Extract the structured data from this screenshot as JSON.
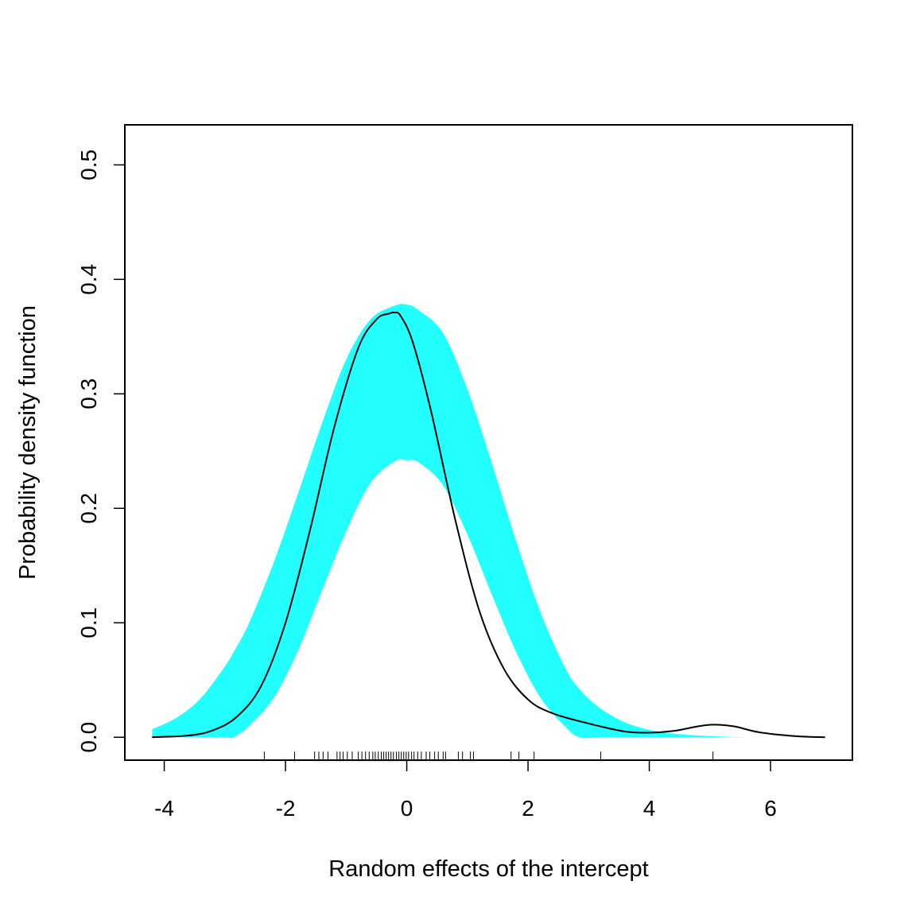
{
  "chart_data": {
    "type": "area",
    "title": "",
    "xlabel": "Random effects of the intercept",
    "ylabel": "Probability density function",
    "xlim": [
      -4.65,
      7.35
    ],
    "ylim": [
      -0.02,
      0.535
    ],
    "x_ticks": [
      -4,
      -2,
      0,
      2,
      4,
      6
    ],
    "x_tick_labels": [
      "-4",
      "-2",
      "0",
      "2",
      "4",
      "6"
    ],
    "y_ticks": [
      0.0,
      0.1,
      0.2,
      0.3,
      0.4,
      0.5
    ],
    "y_tick_labels": [
      "0.0",
      "0.1",
      "0.2",
      "0.3",
      "0.4",
      "0.5"
    ],
    "grid": false,
    "band": {
      "color": "#22ffff",
      "x": [
        -4.2,
        -3.8,
        -3.4,
        -3.0,
        -2.85,
        -2.6,
        -2.2,
        -1.8,
        -1.4,
        -1.0,
        -0.6,
        -0.2,
        0.0,
        0.2,
        0.6,
        1.0,
        1.4,
        1.8,
        2.2,
        2.6,
        2.85,
        3.2,
        3.6,
        4.0,
        4.4,
        4.8,
        5.2,
        5.6
      ],
      "upper": [
        0.007,
        0.017,
        0.034,
        0.062,
        0.075,
        0.1,
        0.152,
        0.212,
        0.274,
        0.33,
        0.365,
        0.377,
        0.378,
        0.373,
        0.353,
        0.304,
        0.24,
        0.172,
        0.11,
        0.062,
        0.042,
        0.025,
        0.013,
        0.0065,
        0.0032,
        0.0015,
        0.0006,
        0.0
      ],
      "lower": [
        0.0,
        0.0,
        0.0,
        0.0,
        0.0,
        0.01,
        0.034,
        0.075,
        0.128,
        0.18,
        0.222,
        0.241,
        0.242,
        0.24,
        0.22,
        0.177,
        0.125,
        0.075,
        0.035,
        0.01,
        0.0,
        0.0,
        0.0,
        0.0,
        0.0,
        0.0,
        0.0,
        0.0
      ]
    },
    "series": [
      {
        "color": "#000000",
        "x": [
          -4.2,
          -3.6,
          -3.2,
          -2.8,
          -2.4,
          -2.0,
          -1.6,
          -1.2,
          -0.8,
          -0.5,
          -0.3,
          -0.2,
          -0.1,
          0.1,
          0.4,
          0.8,
          1.2,
          1.6,
          2.0,
          2.4,
          3.0,
          3.6,
          4.0,
          4.4,
          4.8,
          5.05,
          5.4,
          5.8,
          6.4,
          6.9
        ],
        "y": [
          0.0,
          0.0015,
          0.006,
          0.018,
          0.045,
          0.1,
          0.18,
          0.27,
          0.34,
          0.365,
          0.37,
          0.371,
          0.368,
          0.345,
          0.285,
          0.19,
          0.11,
          0.06,
          0.033,
          0.021,
          0.012,
          0.005,
          0.004,
          0.0055,
          0.0095,
          0.011,
          0.0095,
          0.0045,
          0.001,
          0.0
        ]
      }
    ],
    "rug": [
      -2.35,
      -1.85,
      -1.52,
      -1.45,
      -1.38,
      -1.3,
      -1.15,
      -1.1,
      -1.05,
      -0.98,
      -0.9,
      -0.8,
      -0.74,
      -0.68,
      -0.62,
      -0.56,
      -0.52,
      -0.47,
      -0.42,
      -0.38,
      -0.34,
      -0.3,
      -0.26,
      -0.22,
      -0.17,
      -0.13,
      -0.09,
      -0.05,
      -0.01,
      0.03,
      0.08,
      0.12,
      0.18,
      0.24,
      0.32,
      0.38,
      0.46,
      0.52,
      0.6,
      0.64,
      0.85,
      0.92,
      1.05,
      1.1,
      1.72,
      1.85,
      2.1,
      3.2,
      5.05
    ]
  }
}
